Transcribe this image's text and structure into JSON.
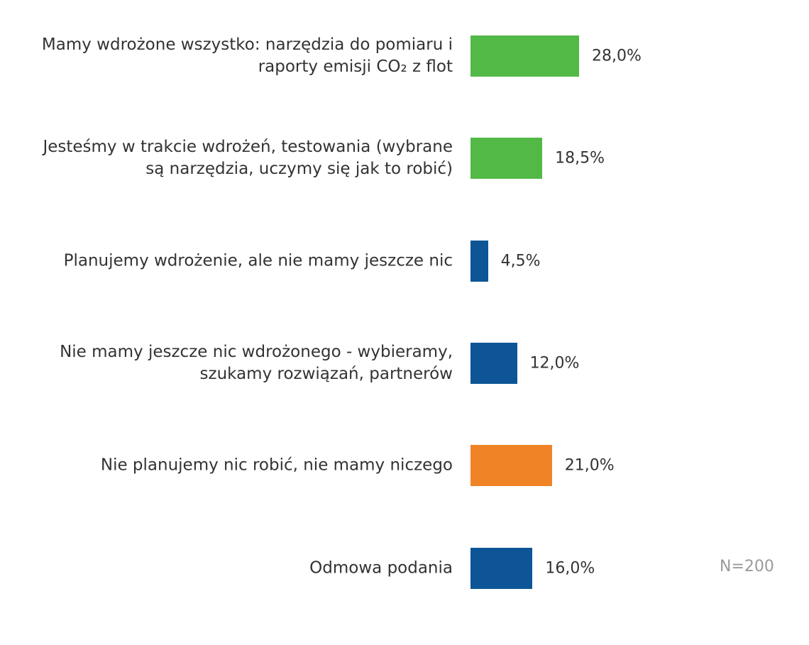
{
  "chart_data": {
    "type": "bar",
    "orientation": "horizontal",
    "categories": [
      "Mamy wdrożone wszystko: narzędzia do pomiaru i raporty emisji CO₂ z flot",
      "Jesteśmy w trakcie wdrożeń, testowania (wybrane są narzędzia, uczymy się jak to robić)",
      "Planujemy wdrożenie, ale nie mamy jeszcze nic",
      "Nie mamy jeszcze nic wdrożonego - wybieramy, szukamy rozwiązań, partnerów",
      "Nie planujemy nic robić, nie mamy niczego",
      "Odmowa podania"
    ],
    "values": [
      28.0,
      18.5,
      4.5,
      12.0,
      21.0,
      16.0
    ],
    "value_labels": [
      "28,0%",
      "18,5%",
      "4,5%",
      "12,0%",
      "21,0%",
      "16,0%"
    ],
    "colors": [
      "#52b947",
      "#52b947",
      "#0d5596",
      "#0d5596",
      "#f08326",
      "#0d5596"
    ],
    "annotation": "N=200"
  }
}
